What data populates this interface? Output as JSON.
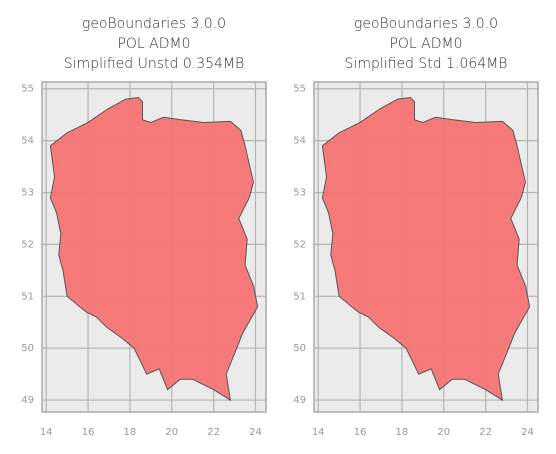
{
  "chart_data": [
    {
      "type": "polygon",
      "title": [
        "geoBoundaries 3.0.0",
        "POL ADM0",
        "Simplified Unstd 0.354MB"
      ],
      "x": [
        14.2,
        15.0,
        16.0,
        16.9,
        17.8,
        18.4,
        18.6,
        18.6,
        19.0,
        19.6,
        20.5,
        21.5,
        22.8,
        23.3,
        23.5,
        23.9,
        23.7,
        23.2,
        23.6,
        23.5,
        23.9,
        24.1,
        23.4,
        22.6,
        22.8,
        22.0,
        21.0,
        20.4,
        19.8,
        19.4,
        18.8,
        18.2,
        17.6,
        16.9,
        16.4,
        15.9,
        15.0,
        14.8,
        14.6,
        14.7,
        14.5,
        14.2,
        14.4,
        14.2
      ],
      "y": [
        53.9,
        54.15,
        54.35,
        54.6,
        54.8,
        54.83,
        54.75,
        54.4,
        54.35,
        54.45,
        54.4,
        54.35,
        54.37,
        54.2,
        53.9,
        53.2,
        52.9,
        52.5,
        52.1,
        51.6,
        51.2,
        50.8,
        50.3,
        49.5,
        49.0,
        49.2,
        49.4,
        49.4,
        49.2,
        49.6,
        49.5,
        50.0,
        50.2,
        50.4,
        50.6,
        50.7,
        51.0,
        51.5,
        51.8,
        52.2,
        52.6,
        52.9,
        53.3,
        53.9
      ],
      "color": "#f87474",
      "xlim": [
        13.8,
        24.5
      ],
      "ylim": [
        48.77,
        55.13
      ],
      "xticks": [
        14,
        16,
        18,
        20,
        22,
        24
      ],
      "yticks": [
        49,
        50,
        51,
        52,
        53,
        54,
        55
      ],
      "grid": true
    },
    {
      "type": "polygon",
      "title": [
        "geoBoundaries 3.0.0",
        "POL ADM0",
        "Simplified Std 1.064MB"
      ],
      "x": [
        14.2,
        15.0,
        16.0,
        16.9,
        17.8,
        18.4,
        18.6,
        18.6,
        19.0,
        19.6,
        20.5,
        21.5,
        22.8,
        23.3,
        23.5,
        23.9,
        23.7,
        23.2,
        23.6,
        23.5,
        23.9,
        24.1,
        23.4,
        22.6,
        22.8,
        22.0,
        21.0,
        20.4,
        19.8,
        19.4,
        18.8,
        18.2,
        17.6,
        16.9,
        16.4,
        15.9,
        15.0,
        14.8,
        14.6,
        14.7,
        14.5,
        14.2,
        14.4,
        14.2
      ],
      "y": [
        53.9,
        54.15,
        54.35,
        54.6,
        54.8,
        54.83,
        54.75,
        54.4,
        54.35,
        54.45,
        54.4,
        54.35,
        54.37,
        54.2,
        53.9,
        53.2,
        52.9,
        52.5,
        52.1,
        51.6,
        51.2,
        50.8,
        50.3,
        49.5,
        49.0,
        49.2,
        49.4,
        49.4,
        49.2,
        49.6,
        49.5,
        50.0,
        50.2,
        50.4,
        50.6,
        50.7,
        51.0,
        51.5,
        51.8,
        52.2,
        52.6,
        52.9,
        53.3,
        53.9
      ],
      "color": "#f87474",
      "xlim": [
        13.8,
        24.5
      ],
      "ylim": [
        48.77,
        55.13
      ],
      "xticks": [
        14,
        16,
        18,
        20,
        22,
        24
      ],
      "yticks": [
        49,
        50,
        51,
        52,
        53,
        54,
        55
      ],
      "grid": true
    }
  ]
}
